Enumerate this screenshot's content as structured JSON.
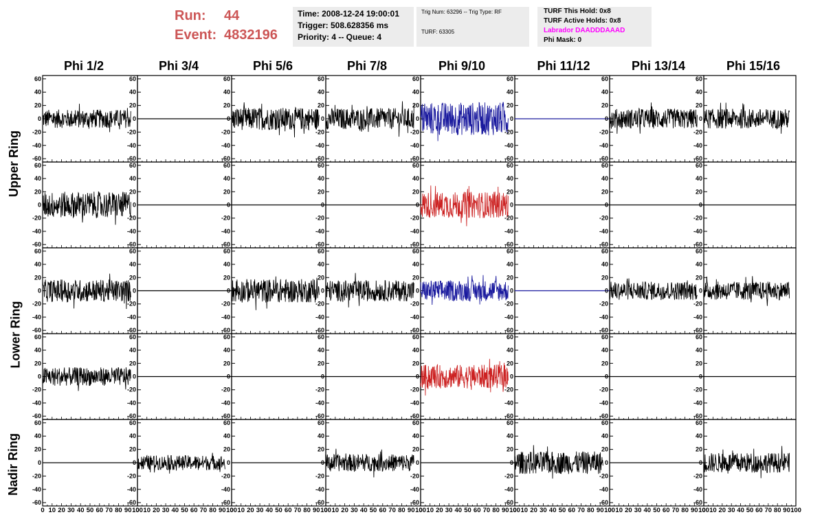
{
  "header": {
    "run_label": "Run:",
    "run_value": "44",
    "event_label": "Event:",
    "event_value": "4832196",
    "time": "Time: 2008-12-24 19:00:01",
    "trigger": "Trigger: 508.628356 ms",
    "priority": "Priority: 4 -- Queue: 4",
    "trig_num": "Trig Num: 63296 -- Trig Type: RF",
    "turf": "TURF: 63305",
    "turf_this_hold": "TURF This Hold: 0x8",
    "turf_active_holds": "TURF Active Holds: 0x8",
    "labrador": "Labrador DAADDDAAAD",
    "phi_mask": "Phi Mask: 0"
  },
  "colors": {
    "run_text": "#cc5555",
    "labrador_text": "#ff00ff",
    "trace_default": "#000000",
    "trace_blue": "#1a1a9e",
    "trace_red": "#cc2222",
    "info_box_bg": "#ececec"
  },
  "columns": [
    "Phi 1/2",
    "Phi 3/4",
    "Phi 5/6",
    "Phi 7/8",
    "Phi 9/10",
    "Phi 11/12",
    "Phi 13/14",
    "Phi 15/16"
  ],
  "ring_labels": [
    "Upper Ring",
    "Lower Ring",
    "Nadir Ring"
  ],
  "chart_data": {
    "type": "line",
    "description_rows": [
      "upper-1",
      "upper-2",
      "lower-1",
      "lower-2",
      "nadir"
    ],
    "xlim": [
      0,
      100
    ],
    "ylim": [
      -65,
      65
    ],
    "y_ticks": [
      -60,
      -40,
      -20,
      0,
      20,
      40,
      60
    ],
    "x_ticks": [
      0,
      10,
      20,
      30,
      40,
      50,
      60,
      70,
      80,
      90,
      100
    ],
    "panels": [
      {
        "row": 0,
        "col": 0,
        "kind": "noise",
        "amp": 14,
        "color": "trace_default"
      },
      {
        "row": 0,
        "col": 1,
        "kind": "flat",
        "color": "trace_default"
      },
      {
        "row": 0,
        "col": 2,
        "kind": "noise",
        "amp": 17,
        "color": "trace_default"
      },
      {
        "row": 0,
        "col": 3,
        "kind": "noise",
        "amp": 16,
        "color": "trace_default"
      },
      {
        "row": 0,
        "col": 4,
        "kind": "noise",
        "amp": 25,
        "color": "trace_blue"
      },
      {
        "row": 0,
        "col": 5,
        "kind": "flat",
        "color": "trace_blue"
      },
      {
        "row": 0,
        "col": 6,
        "kind": "noise",
        "amp": 15,
        "color": "trace_default"
      },
      {
        "row": 0,
        "col": 7,
        "kind": "noise",
        "amp": 15,
        "color": "trace_default"
      },
      {
        "row": 1,
        "col": 0,
        "kind": "noise",
        "amp": 20,
        "color": "trace_default"
      },
      {
        "row": 1,
        "col": 1,
        "kind": "flat",
        "color": "trace_default"
      },
      {
        "row": 1,
        "col": 2,
        "kind": "flat",
        "color": "trace_default"
      },
      {
        "row": 1,
        "col": 3,
        "kind": "flat",
        "color": "trace_default"
      },
      {
        "row": 1,
        "col": 4,
        "kind": "noise",
        "amp": 20,
        "color": "trace_red"
      },
      {
        "row": 1,
        "col": 5,
        "kind": "flat",
        "color": "trace_default"
      },
      {
        "row": 1,
        "col": 6,
        "kind": "flat",
        "color": "trace_default"
      },
      {
        "row": 1,
        "col": 7,
        "kind": "flat",
        "color": "trace_default"
      },
      {
        "row": 2,
        "col": 0,
        "kind": "noise",
        "amp": 17,
        "color": "trace_default"
      },
      {
        "row": 2,
        "col": 1,
        "kind": "flat",
        "color": "trace_default"
      },
      {
        "row": 2,
        "col": 2,
        "kind": "noise",
        "amp": 18,
        "color": "trace_default"
      },
      {
        "row": 2,
        "col": 3,
        "kind": "noise",
        "amp": 16,
        "color": "trace_default"
      },
      {
        "row": 2,
        "col": 4,
        "kind": "noise",
        "amp": 16,
        "color": "trace_blue"
      },
      {
        "row": 2,
        "col": 5,
        "kind": "flat",
        "color": "trace_blue"
      },
      {
        "row": 2,
        "col": 6,
        "kind": "noise",
        "amp": 14,
        "color": "trace_default"
      },
      {
        "row": 2,
        "col": 7,
        "kind": "noise",
        "amp": 14,
        "color": "trace_default"
      },
      {
        "row": 3,
        "col": 0,
        "kind": "noise",
        "amp": 14,
        "color": "trace_default"
      },
      {
        "row": 3,
        "col": 1,
        "kind": "flat",
        "color": "trace_default"
      },
      {
        "row": 3,
        "col": 2,
        "kind": "flat",
        "color": "trace_default"
      },
      {
        "row": 3,
        "col": 3,
        "kind": "flat",
        "color": "trace_default"
      },
      {
        "row": 3,
        "col": 4,
        "kind": "noise",
        "amp": 18,
        "color": "trace_red"
      },
      {
        "row": 3,
        "col": 5,
        "kind": "flat",
        "color": "trace_default"
      },
      {
        "row": 3,
        "col": 6,
        "kind": "flat",
        "color": "trace_default"
      },
      {
        "row": 3,
        "col": 7,
        "kind": "flat",
        "color": "trace_default"
      },
      {
        "row": 4,
        "col": 0,
        "kind": "flat",
        "color": "trace_default"
      },
      {
        "row": 4,
        "col": 1,
        "kind": "noise",
        "amp": 11,
        "color": "trace_default"
      },
      {
        "row": 4,
        "col": 2,
        "kind": "flat",
        "color": "trace_default"
      },
      {
        "row": 4,
        "col": 3,
        "kind": "noise",
        "amp": 13,
        "color": "trace_default"
      },
      {
        "row": 4,
        "col": 4,
        "kind": "flat",
        "color": "trace_default"
      },
      {
        "row": 4,
        "col": 5,
        "kind": "noise",
        "amp": 17,
        "color": "trace_default"
      },
      {
        "row": 4,
        "col": 6,
        "kind": "flat",
        "color": "trace_default"
      },
      {
        "row": 4,
        "col": 7,
        "kind": "noise",
        "amp": 15,
        "color": "trace_default"
      }
    ]
  }
}
